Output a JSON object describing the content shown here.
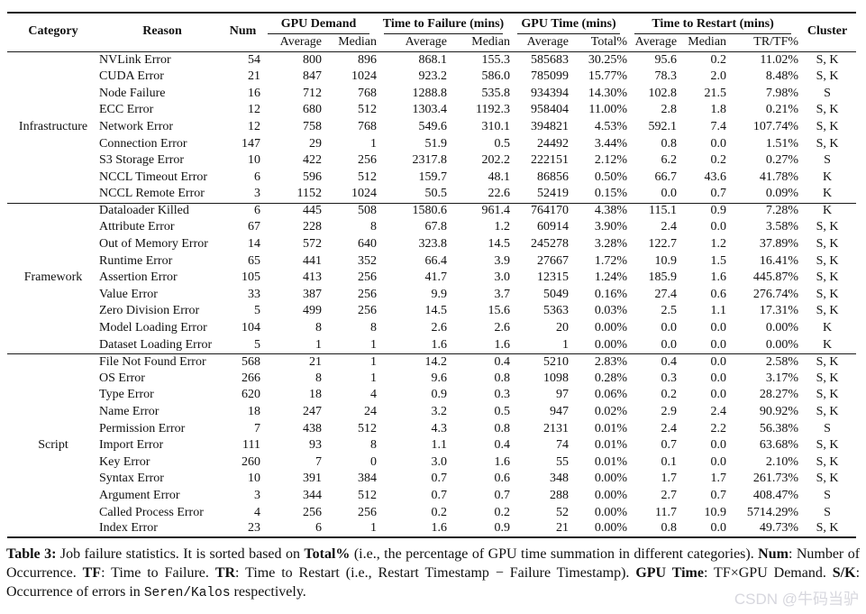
{
  "table": {
    "header": {
      "category": "Category",
      "reason": "Reason",
      "num": "Num",
      "cluster": "Cluster",
      "groups": [
        {
          "label": "GPU Demand",
          "subs": [
            "Average",
            "Median"
          ]
        },
        {
          "label": "Time to Failure (mins)",
          "subs": [
            "Average",
            "Median"
          ]
        },
        {
          "label": "GPU Time (mins)",
          "subs": [
            "Average",
            "Total%"
          ]
        },
        {
          "label": "Time to Restart (mins)",
          "subs": [
            "Average",
            "Median",
            "TR/TF%"
          ]
        }
      ]
    },
    "groups": [
      {
        "category": "Infrastructure",
        "rows": [
          {
            "reason": "NVLink Error",
            "num": "54",
            "values": [
              "800",
              "896",
              "868.1",
              "155.3",
              "585683",
              "30.25%",
              "95.6",
              "0.2",
              "11.02%"
            ],
            "cluster": "S, K"
          },
          {
            "reason": "CUDA Error",
            "num": "21",
            "values": [
              "847",
              "1024",
              "923.2",
              "586.0",
              "785099",
              "15.77%",
              "78.3",
              "2.0",
              "8.48%"
            ],
            "cluster": "S, K"
          },
          {
            "reason": "Node Failure",
            "num": "16",
            "values": [
              "712",
              "768",
              "1288.8",
              "535.8",
              "934394",
              "14.30%",
              "102.8",
              "21.5",
              "7.98%"
            ],
            "cluster": "S"
          },
          {
            "reason": "ECC Error",
            "num": "12",
            "values": [
              "680",
              "512",
              "1303.4",
              "1192.3",
              "958404",
              "11.00%",
              "2.8",
              "1.8",
              "0.21%"
            ],
            "cluster": "S, K"
          },
          {
            "reason": "Network Error",
            "num": "12",
            "values": [
              "758",
              "768",
              "549.6",
              "310.1",
              "394821",
              "4.53%",
              "592.1",
              "7.4",
              "107.74%"
            ],
            "cluster": "S, K"
          },
          {
            "reason": "Connection Error",
            "num": "147",
            "values": [
              "29",
              "1",
              "51.9",
              "0.5",
              "24492",
              "3.44%",
              "0.8",
              "0.0",
              "1.51%"
            ],
            "cluster": "S, K"
          },
          {
            "reason": "S3 Storage Error",
            "num": "10",
            "values": [
              "422",
              "256",
              "2317.8",
              "202.2",
              "222151",
              "2.12%",
              "6.2",
              "0.2",
              "0.27%"
            ],
            "cluster": "S"
          },
          {
            "reason": "NCCL Timeout Error",
            "num": "6",
            "values": [
              "596",
              "512",
              "159.7",
              "48.1",
              "86856",
              "0.50%",
              "66.7",
              "43.6",
              "41.78%"
            ],
            "cluster": "K"
          },
          {
            "reason": "NCCL Remote Error",
            "num": "3",
            "values": [
              "1152",
              "1024",
              "50.5",
              "22.6",
              "52419",
              "0.15%",
              "0.0",
              "0.7",
              "0.09%"
            ],
            "cluster": "K"
          }
        ]
      },
      {
        "category": "Framework",
        "rows": [
          {
            "reason": "Dataloader Killed",
            "num": "6",
            "values": [
              "445",
              "508",
              "1580.6",
              "961.4",
              "764170",
              "4.38%",
              "115.1",
              "0.9",
              "7.28%"
            ],
            "cluster": "K"
          },
          {
            "reason": "Attribute Error",
            "num": "67",
            "values": [
              "228",
              "8",
              "67.8",
              "1.2",
              "60914",
              "3.90%",
              "2.4",
              "0.0",
              "3.58%"
            ],
            "cluster": "S, K"
          },
          {
            "reason": "Out of Memory Error",
            "num": "14",
            "values": [
              "572",
              "640",
              "323.8",
              "14.5",
              "245278",
              "3.28%",
              "122.7",
              "1.2",
              "37.89%"
            ],
            "cluster": "S, K"
          },
          {
            "reason": "Runtime Error",
            "num": "65",
            "values": [
              "441",
              "352",
              "66.4",
              "3.9",
              "27667",
              "1.72%",
              "10.9",
              "1.5",
              "16.41%"
            ],
            "cluster": "S, K"
          },
          {
            "reason": "Assertion Error",
            "num": "105",
            "values": [
              "413",
              "256",
              "41.7",
              "3.0",
              "12315",
              "1.24%",
              "185.9",
              "1.6",
              "445.87%"
            ],
            "cluster": "S, K"
          },
          {
            "reason": "Value Error",
            "num": "33",
            "values": [
              "387",
              "256",
              "9.9",
              "3.7",
              "5049",
              "0.16%",
              "27.4",
              "0.6",
              "276.74%"
            ],
            "cluster": "S, K"
          },
          {
            "reason": "Zero Division Error",
            "num": "5",
            "values": [
              "499",
              "256",
              "14.5",
              "15.6",
              "5363",
              "0.03%",
              "2.5",
              "1.1",
              "17.31%"
            ],
            "cluster": "S, K"
          },
          {
            "reason": "Model Loading Error",
            "num": "104",
            "values": [
              "8",
              "8",
              "2.6",
              "2.6",
              "20",
              "0.00%",
              "0.0",
              "0.0",
              "0.00%"
            ],
            "cluster": "K"
          },
          {
            "reason": "Dataset Loading Error",
            "num": "5",
            "values": [
              "1",
              "1",
              "1.6",
              "1.6",
              "1",
              "0.00%",
              "0.0",
              "0.0",
              "0.00%"
            ],
            "cluster": "K"
          }
        ]
      },
      {
        "category": "Script",
        "rows": [
          {
            "reason": "File Not Found Error",
            "num": "568",
            "values": [
              "21",
              "1",
              "14.2",
              "0.4",
              "5210",
              "2.83%",
              "0.4",
              "0.0",
              "2.58%"
            ],
            "cluster": "S, K"
          },
          {
            "reason": "OS Error",
            "num": "266",
            "values": [
              "8",
              "1",
              "9.6",
              "0.8",
              "1098",
              "0.28%",
              "0.3",
              "0.0",
              "3.17%"
            ],
            "cluster": "S, K"
          },
          {
            "reason": "Type Error",
            "num": "620",
            "values": [
              "18",
              "4",
              "0.9",
              "0.3",
              "97",
              "0.06%",
              "0.2",
              "0.0",
              "28.27%"
            ],
            "cluster": "S, K"
          },
          {
            "reason": "Name Error",
            "num": "18",
            "values": [
              "247",
              "24",
              "3.2",
              "0.5",
              "947",
              "0.02%",
              "2.9",
              "2.4",
              "90.92%"
            ],
            "cluster": "S, K"
          },
          {
            "reason": "Permission Error",
            "num": "7",
            "values": [
              "438",
              "512",
              "4.3",
              "0.8",
              "2131",
              "0.01%",
              "2.4",
              "2.2",
              "56.38%"
            ],
            "cluster": "S"
          },
          {
            "reason": "Import Error",
            "num": "111",
            "values": [
              "93",
              "8",
              "1.1",
              "0.4",
              "74",
              "0.01%",
              "0.7",
              "0.0",
              "63.68%"
            ],
            "cluster": "S, K"
          },
          {
            "reason": "Key Error",
            "num": "260",
            "values": [
              "7",
              "0",
              "3.0",
              "1.6",
              "55",
              "0.01%",
              "0.1",
              "0.0",
              "2.10%"
            ],
            "cluster": "S, K"
          },
          {
            "reason": "Syntax Error",
            "num": "10",
            "values": [
              "391",
              "384",
              "0.7",
              "0.6",
              "348",
              "0.00%",
              "1.7",
              "1.7",
              "261.73%"
            ],
            "cluster": "S, K"
          },
          {
            "reason": "Argument Error",
            "num": "3",
            "values": [
              "344",
              "512",
              "0.7",
              "0.7",
              "288",
              "0.00%",
              "2.7",
              "0.7",
              "408.47%"
            ],
            "cluster": "S"
          },
          {
            "reason": "Called Process Error",
            "num": "4",
            "values": [
              "256",
              "256",
              "0.2",
              "0.2",
              "52",
              "0.00%",
              "11.7",
              "10.9",
              "5714.29%"
            ],
            "cluster": "S"
          },
          {
            "reason": "Index Error",
            "num": "23",
            "values": [
              "6",
              "1",
              "1.6",
              "0.9",
              "21",
              "0.00%",
              "0.8",
              "0.0",
              "49.73%"
            ],
            "cluster": "S, K"
          }
        ]
      }
    ]
  },
  "caption": {
    "segments": [
      {
        "text": "Table 3:",
        "bold": true
      },
      {
        "text": " Job failure statistics. It is sorted based on ",
        "bold": false
      },
      {
        "text": "Total%",
        "bold": true
      },
      {
        "text": " (i.e., the percentage of GPU time summation in different categories). ",
        "bold": false
      },
      {
        "text": "Num",
        "bold": true
      },
      {
        "text": ": Number of Occurrence. ",
        "bold": false
      },
      {
        "text": "TF",
        "bold": true
      },
      {
        "text": ": Time to Failure. ",
        "bold": false
      },
      {
        "text": "TR",
        "bold": true
      },
      {
        "text": ": Time to Restart (i.e., Restart Timestamp − Failure Timestamp). ",
        "bold": false
      },
      {
        "text": "GPU Time",
        "bold": true
      },
      {
        "text": ": TF×GPU Demand. ",
        "bold": false
      },
      {
        "text": "S/K",
        "bold": true
      },
      {
        "text": ": Occurrence of errors in ",
        "bold": false
      },
      {
        "text": "Seren/Kalos",
        "bold": false,
        "mono": true
      },
      {
        "text": " respectively.",
        "bold": false
      }
    ]
  },
  "watermark": "CSDN @牛码当驴",
  "colors": {
    "text": "#111111",
    "rule": "#1a1a1a",
    "watermark": "#d7d7de"
  }
}
